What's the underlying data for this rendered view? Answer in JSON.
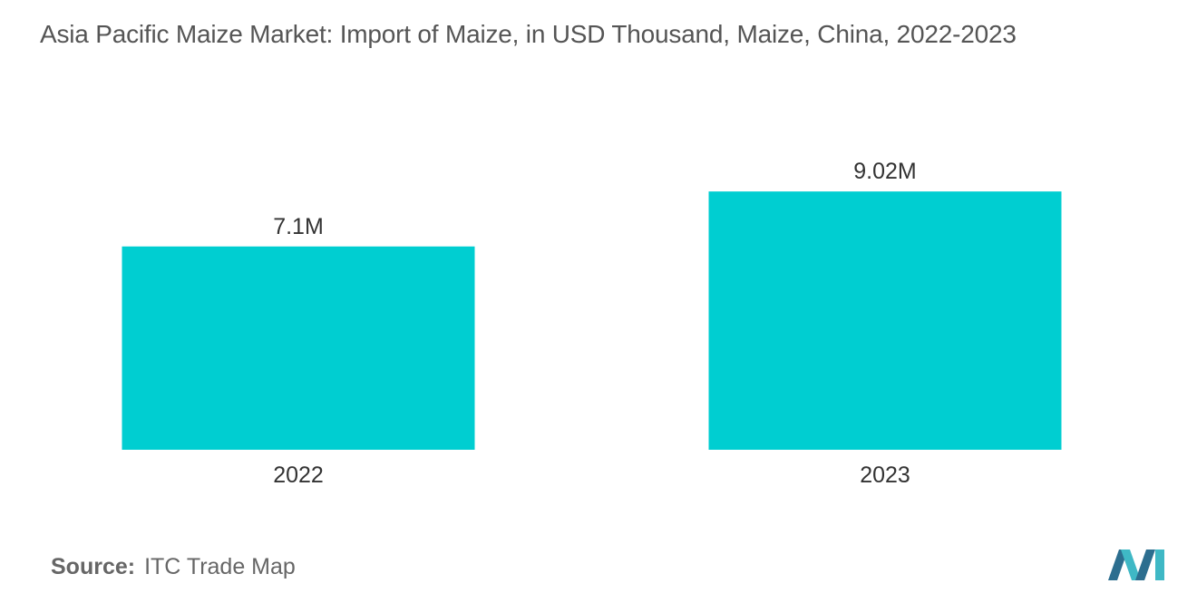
{
  "chart_data": {
    "type": "bar",
    "title": "Asia Pacific Maize Market:  Import of Maize, in USD Thousand, Maize, China, 2022-2023",
    "categories": [
      "2022",
      "2023"
    ],
    "values": [
      7.1,
      9.02
    ],
    "value_labels": [
      "7.1M",
      "9.02M"
    ],
    "unit": "M",
    "xlabel": "",
    "ylabel": "",
    "ylim": [
      0,
      9.5
    ],
    "grid": false,
    "legend": "none",
    "bar_color": "#00CED1"
  },
  "source": {
    "label": "Source:",
    "value": "ITC Trade Map"
  },
  "logo": {
    "icon": "mordor-intelligence-logo-icon",
    "colors": [
      "#2C6E8F",
      "#3FB8C5"
    ]
  }
}
